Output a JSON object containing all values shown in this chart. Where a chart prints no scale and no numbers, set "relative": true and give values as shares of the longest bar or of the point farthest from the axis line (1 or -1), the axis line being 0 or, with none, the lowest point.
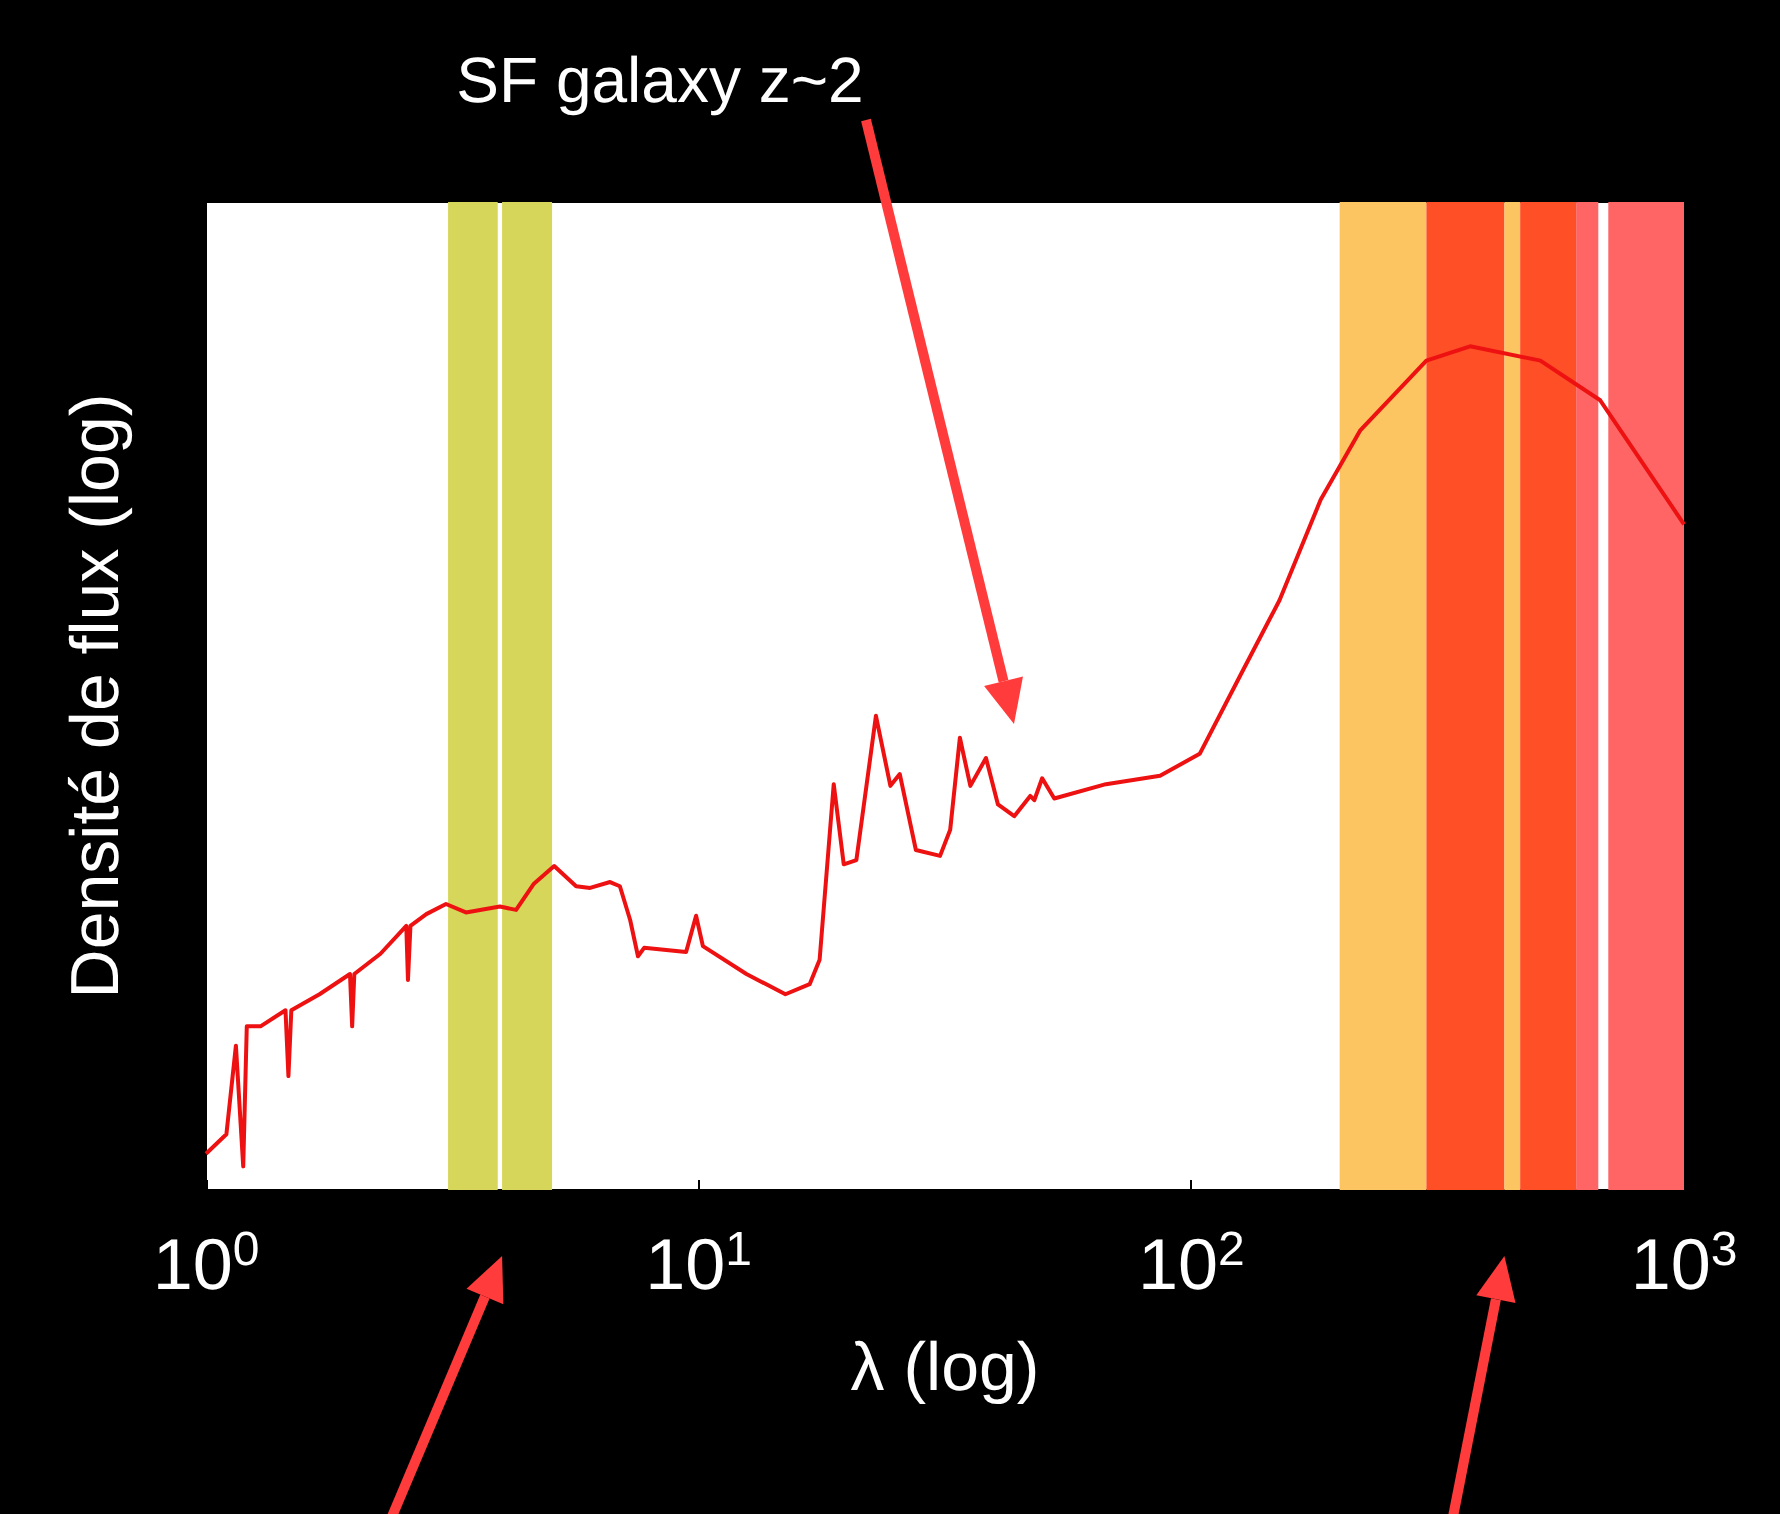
{
  "chart_data": {
    "type": "line",
    "relative": true,
    "log": "x",
    "xlabel": "λ (log)",
    "ylabel": "Densité de flux (log)",
    "xlim": [
      1,
      1000
    ],
    "xticks": [
      {
        "value": 1,
        "label": "10$^{0}$"
      },
      {
        "value": 10,
        "label": "10$^{1}$"
      },
      {
        "value": 100,
        "label": "10$^{2}$"
      },
      {
        "value": 1000,
        "label": "10$^{3}$"
      }
    ],
    "marker": "none",
    "annotations": [
      "SF galaxy z~2"
    ],
    "bands": [
      {
        "axis": "x",
        "from": 3.1,
        "to": 3.91,
        "color": "#d6d65a"
      },
      {
        "axis": "x",
        "from": 3.99,
        "to": 5.04,
        "color": "#d6d65a"
      },
      {
        "axis": "x",
        "from": 200,
        "to": 300,
        "color": "#fdc462"
      },
      {
        "axis": "x",
        "from": 300,
        "to": 432,
        "color": "#ff4f26"
      },
      {
        "axis": "x",
        "from": 432,
        "to": 465,
        "color": "#fdc462"
      },
      {
        "axis": "x",
        "from": 465,
        "to": 604,
        "color": "#ff4f26"
      },
      {
        "axis": "x",
        "from": 604,
        "to": 670,
        "color": "#ff6565"
      },
      {
        "axis": "x",
        "from": 702,
        "to": 1000,
        "color": "#ff6565"
      }
    ],
    "series": [
      {
        "color": "#ee1111",
        "x": [
          1.0,
          1.1,
          1.15,
          1.19,
          1.21,
          1.29,
          1.45,
          1.47,
          1.49,
          1.7,
          1.96,
          1.98,
          2.0,
          2.26,
          2.55,
          2.57,
          2.6,
          2.8,
          3.07,
          3.37,
          3.95,
          4.26,
          4.63,
          5.09,
          5.64,
          6.02,
          6.61,
          6.92,
          7.26,
          7.53,
          7.75,
          9.43,
          9.88,
          10.2,
          12.5,
          15.0,
          16.8,
          17.6,
          18.8,
          19.7,
          20.9,
          22.9,
          24.5,
          25.6,
          27.6,
          30.9,
          32.4,
          33.9,
          35.6,
          38.3,
          40.5,
          43.7,
          47.1,
          48.0,
          49.8,
          52.7,
          67.1,
          86.4,
          104,
          126,
          151,
          183,
          220,
          300,
          368,
          511,
          676,
          1000
        ],
        "values": [
          0.043,
          0.066,
          0.171,
          0.028,
          0.194,
          0.194,
          0.213,
          0.135,
          0.213,
          0.232,
          0.256,
          0.194,
          0.256,
          0.28,
          0.313,
          0.249,
          0.313,
          0.327,
          0.339,
          0.329,
          0.336,
          0.332,
          0.363,
          0.384,
          0.36,
          0.358,
          0.365,
          0.36,
          0.32,
          0.277,
          0.287,
          0.282,
          0.325,
          0.289,
          0.256,
          0.232,
          0.244,
          0.273,
          0.481,
          0.386,
          0.391,
          0.562,
          0.479,
          0.493,
          0.403,
          0.396,
          0.427,
          0.536,
          0.479,
          0.512,
          0.457,
          0.443,
          0.467,
          0.462,
          0.488,
          0.464,
          0.481,
          0.491,
          0.517,
          0.611,
          0.699,
          0.818,
          0.9,
          0.983,
          1.0,
          0.983,
          0.936,
          0.789
        ]
      }
    ]
  }
}
